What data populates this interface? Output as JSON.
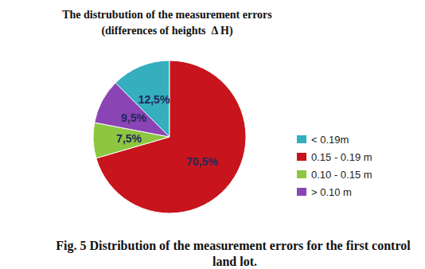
{
  "chart_data": {
    "type": "pie",
    "title": "The distrubution of the measurement errors",
    "subtitle": "(differences of heights  Δ H)",
    "annotations": [
      "Fig. 5 Distribution of the measurement errors for the first control land lot."
    ],
    "categories": [
      "< 0.19m",
      "0.15 - 0.19 m",
      "0.10 - 0.15 m",
      "> 0.10 m"
    ],
    "values": [
      12.5,
      70.5,
      7.5,
      9.5
    ],
    "value_labels": [
      "12,5%",
      "70,5%",
      "7,5%",
      "9,5%"
    ],
    "colors": [
      "#35aebe",
      "#c8141c",
      "#8dc63f",
      "#8a44b4"
    ],
    "data_labels": true,
    "legend": "right"
  }
}
